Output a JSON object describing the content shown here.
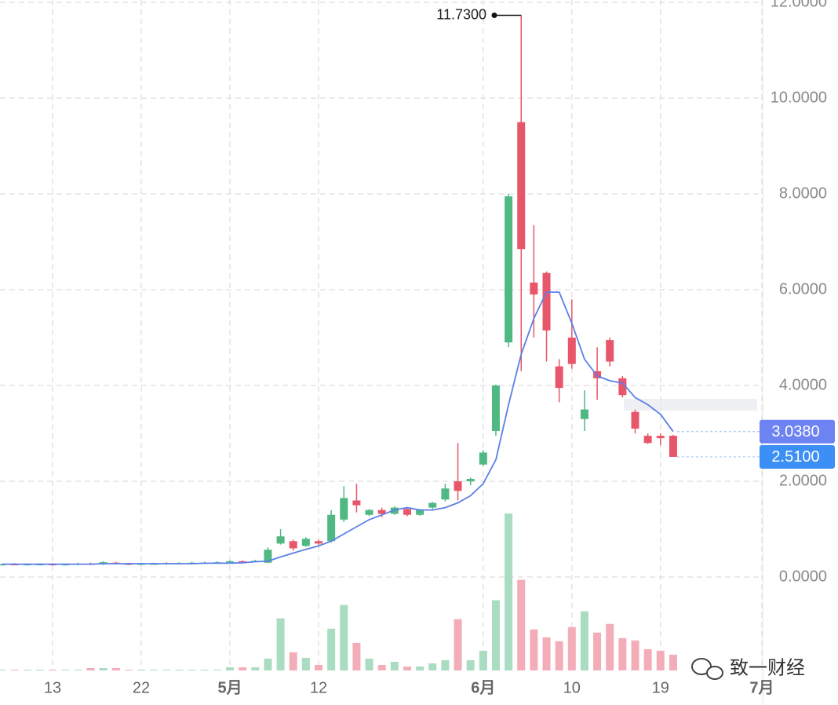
{
  "chart_data": {
    "type": "candlestick",
    "categories": [
      null,
      null,
      null,
      null,
      "13",
      null,
      null,
      null,
      null,
      null,
      null,
      "22",
      null,
      null,
      null,
      null,
      null,
      null,
      "5月",
      null,
      null,
      null,
      null,
      null,
      null,
      "12",
      null,
      null,
      null,
      null,
      null,
      null,
      null,
      null,
      null,
      null,
      null,
      null,
      "6月",
      null,
      null,
      null,
      null,
      null,
      null,
      "10",
      null,
      null,
      null,
      null,
      null,
      null,
      "19",
      null,
      null,
      null,
      null,
      null,
      null,
      null,
      "7月"
    ],
    "open": [
      0.26,
      0.27,
      0.26,
      0.27,
      0.27,
      0.26,
      0.27,
      0.28,
      0.27,
      0.3,
      0.28,
      0.27,
      0.28,
      0.28,
      0.29,
      0.29,
      0.3,
      0.3,
      0.31,
      0.33,
      0.32,
      0.3,
      0.7,
      0.75,
      0.65,
      0.75,
      0.75,
      1.2,
      1.6,
      1.3,
      1.4,
      1.32,
      1.42,
      1.3,
      1.45,
      1.62,
      2.0,
      2.0,
      2.35,
      3.05,
      4.9,
      9.5,
      6.15,
      6.35,
      4.4,
      5.0,
      3.3,
      4.3,
      4.95,
      4.15,
      3.45,
      2.95,
      2.95,
      2.95,
      null,
      null,
      null,
      null,
      null,
      null,
      null
    ],
    "high": [
      0.28,
      0.29,
      0.28,
      0.29,
      0.29,
      0.28,
      0.3,
      0.3,
      0.33,
      0.32,
      0.3,
      0.3,
      0.3,
      0.31,
      0.31,
      0.32,
      0.32,
      0.33,
      0.35,
      0.35,
      0.36,
      0.62,
      1.0,
      0.78,
      0.83,
      0.78,
      1.4,
      1.9,
      1.95,
      1.42,
      1.45,
      1.48,
      1.45,
      1.42,
      1.57,
      1.95,
      2.8,
      2.08,
      2.65,
      4.02,
      8.0,
      11.73,
      7.35,
      6.38,
      4.55,
      5.8,
      3.9,
      4.8,
      5.0,
      4.2,
      3.5,
      3.0,
      3.0,
      2.97,
      null,
      null,
      null,
      null,
      null,
      null,
      null
    ],
    "low": [
      0.24,
      0.25,
      0.24,
      0.25,
      0.24,
      0.24,
      0.25,
      0.25,
      0.25,
      0.26,
      0.25,
      0.25,
      0.26,
      0.26,
      0.27,
      0.27,
      0.28,
      0.28,
      0.3,
      0.31,
      0.31,
      0.29,
      0.68,
      0.55,
      0.63,
      0.66,
      0.72,
      1.15,
      1.35,
      1.27,
      1.25,
      1.3,
      1.27,
      1.28,
      1.42,
      1.58,
      1.6,
      1.92,
      2.32,
      2.95,
      4.8,
      4.3,
      5.0,
      4.5,
      3.65,
      4.35,
      3.05,
      3.7,
      4.4,
      3.75,
      3.0,
      2.78,
      2.75,
      2.51,
      null,
      null,
      null,
      null,
      null,
      null,
      null
    ],
    "close": [
      0.27,
      0.26,
      0.27,
      0.27,
      0.26,
      0.27,
      0.28,
      0.27,
      0.31,
      0.28,
      0.27,
      0.28,
      0.28,
      0.29,
      0.29,
      0.3,
      0.3,
      0.31,
      0.33,
      0.32,
      0.34,
      0.57,
      0.85,
      0.6,
      0.8,
      0.7,
      1.3,
      1.65,
      1.5,
      1.4,
      1.32,
      1.45,
      1.3,
      1.4,
      1.55,
      1.85,
      1.8,
      2.05,
      2.6,
      4.0,
      7.95,
      6.85,
      5.9,
      5.15,
      3.95,
      4.45,
      3.5,
      4.15,
      4.5,
      3.8,
      3.1,
      2.8,
      2.9,
      2.51,
      null,
      null,
      null,
      null,
      null,
      null,
      null
    ],
    "ma": [
      0.27,
      0.27,
      0.27,
      0.27,
      0.27,
      0.27,
      0.27,
      0.27,
      0.28,
      0.28,
      0.28,
      0.28,
      0.28,
      0.28,
      0.28,
      0.28,
      0.29,
      0.29,
      0.29,
      0.3,
      0.32,
      0.33,
      0.42,
      0.5,
      0.58,
      0.65,
      0.75,
      0.9,
      1.05,
      1.2,
      1.3,
      1.4,
      1.45,
      1.4,
      1.4,
      1.45,
      1.55,
      1.7,
      1.95,
      2.45,
      3.6,
      4.65,
      5.4,
      5.95,
      5.95,
      5.3,
      4.55,
      4.2,
      4.1,
      4.05,
      3.75,
      3.6,
      3.4,
      3.038,
      null,
      null,
      null,
      null,
      null,
      null,
      null
    ],
    "volume": [
      0.5,
      0.5,
      0.5,
      0.5,
      0.5,
      0.5,
      0.5,
      1.5,
      1.5,
      1.5,
      0.5,
      0.5,
      0.5,
      0.5,
      0.5,
      0.5,
      0.5,
      0.5,
      2,
      2,
      2,
      7.5,
      33,
      11.5,
      8,
      3.5,
      26.5,
      41.5,
      17.5,
      7.5,
      3.5,
      5.5,
      2.5,
      2.5,
      4.5,
      6.5,
      32.5,
      6.5,
      12.5,
      44.5,
      99.5,
      57.5,
      26,
      21,
      18.5,
      27.5,
      37.5,
      24,
      29.5,
      20.5,
      19,
      13.5,
      12.5,
      10,
      null,
      null,
      null,
      null,
      null,
      null,
      null
    ],
    "colors": {
      "up": "#4fb883",
      "down": "#e8566b",
      "up_volume": "#a9dcc0",
      "down_volume": "#f3adb8",
      "ma": "#5b7fe8",
      "ma_tag": "#6e83f2",
      "close_tag": "#3b8ff5"
    },
    "ylim": [
      -1.95,
      12.05
    ],
    "yticks": [
      {
        "value": 0,
        "label": "0.0000"
      },
      {
        "value": 2,
        "label": "2.0000"
      },
      {
        "value": 4,
        "label": "4.0000"
      },
      {
        "value": 6,
        "label": "6.0000"
      },
      {
        "value": 8,
        "label": "8.0000"
      },
      {
        "value": 10,
        "label": "10.0000"
      },
      {
        "value": 12,
        "label": "12.0000"
      }
    ],
    "y2lim": [
      0,
      425
    ],
    "grid": true,
    "max_label": "11.7300",
    "ma_last_label": "3.0380",
    "close_last_label": "2.5100",
    "watermark": "致一财经"
  }
}
